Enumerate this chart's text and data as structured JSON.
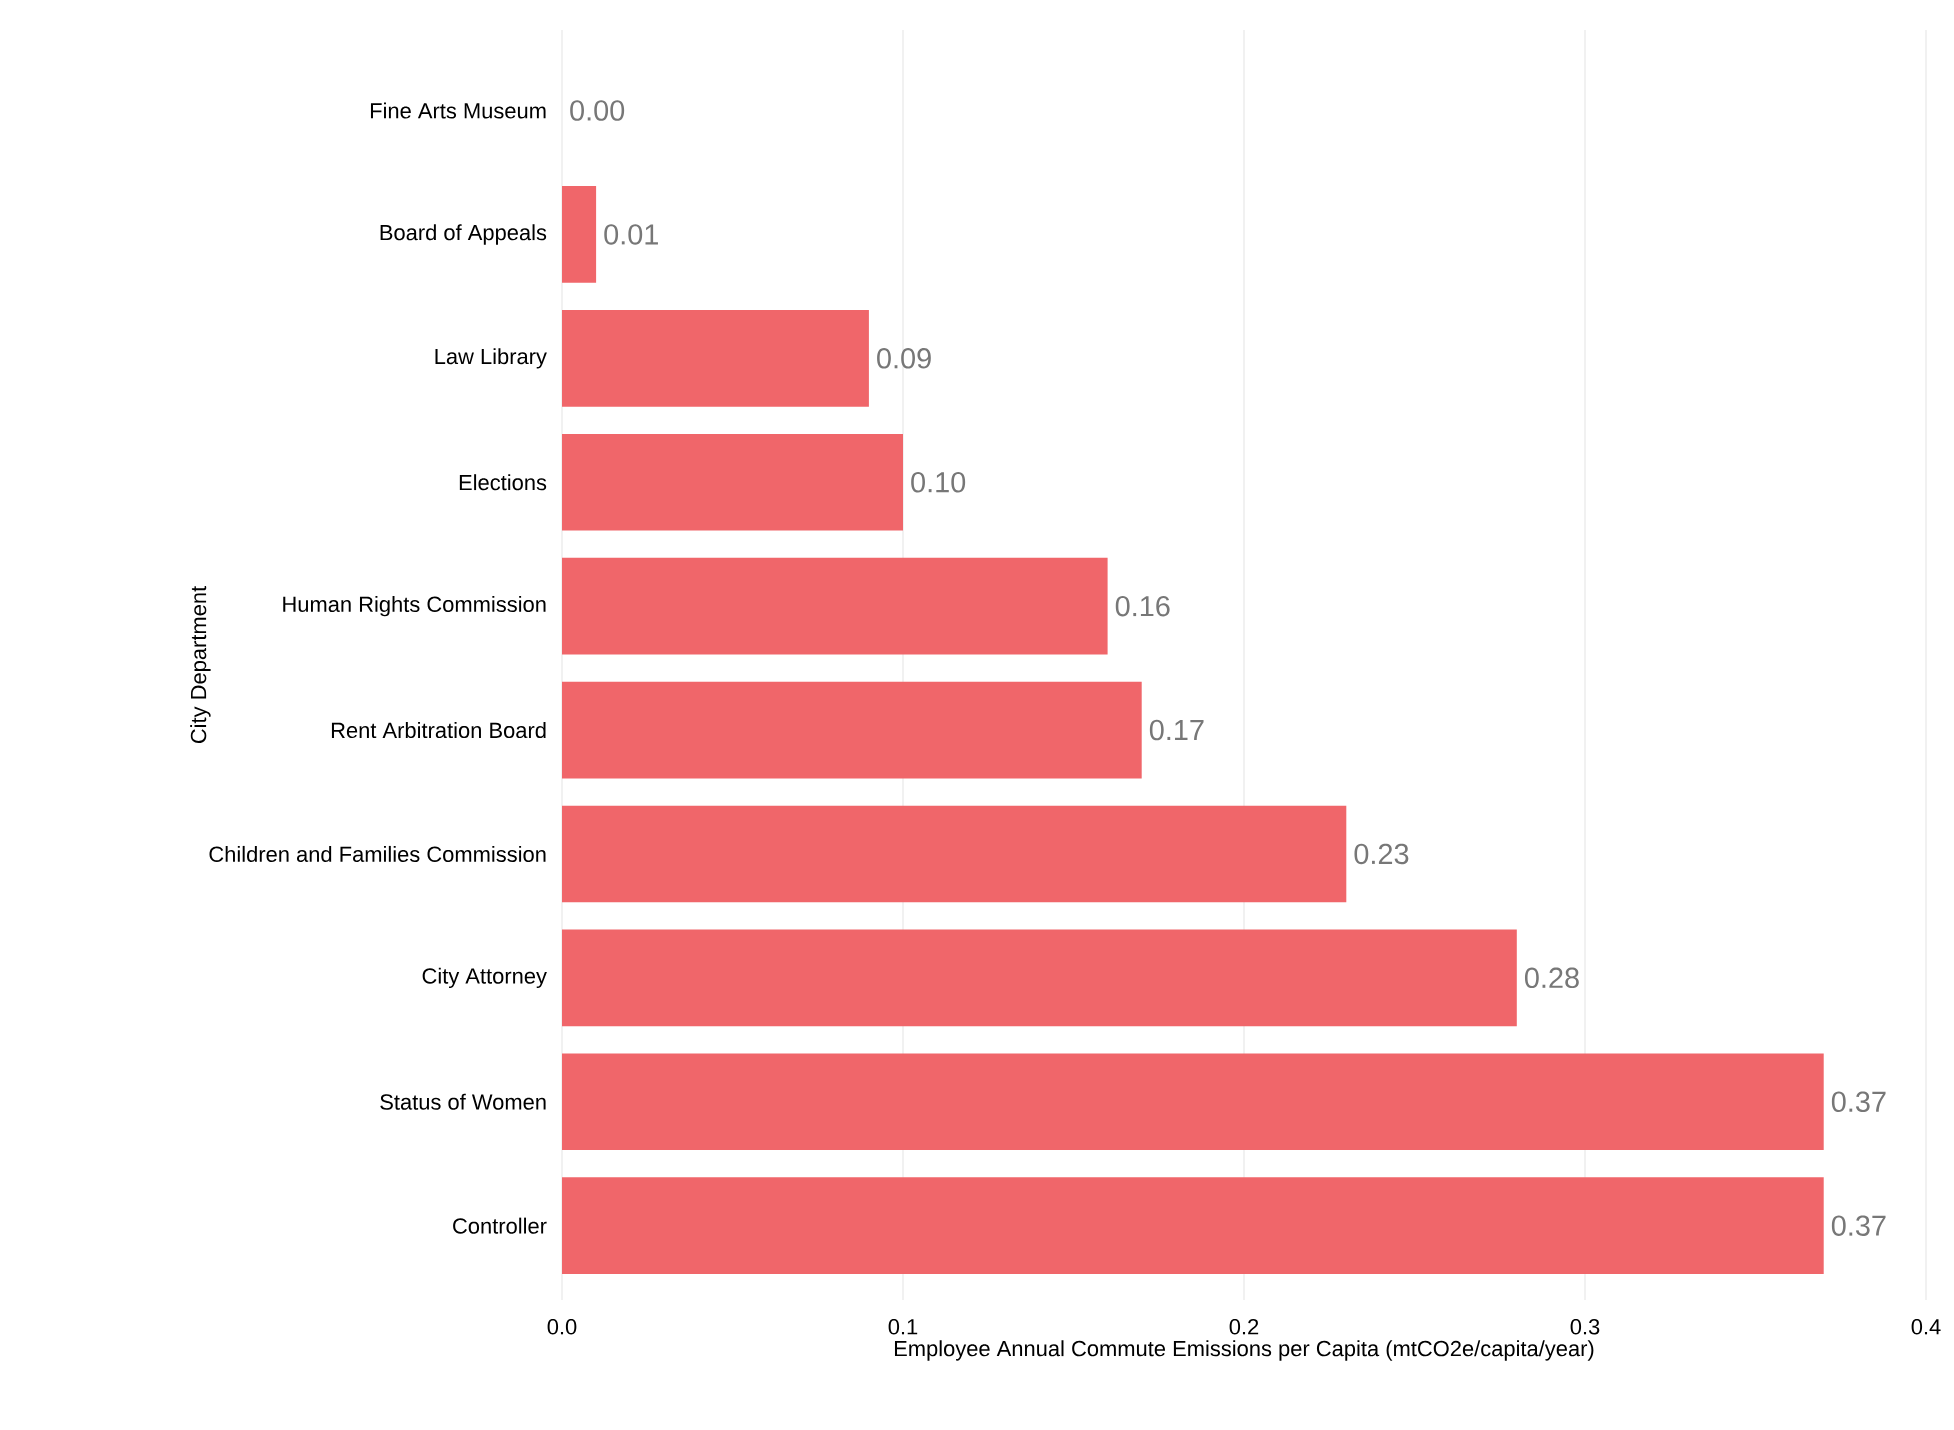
{
  "chart_data": {
    "type": "bar",
    "orientation": "horizontal",
    "xlabel": "Employee Annual Commute Emissions per Capita (mtCO2e/capita/year)",
    "ylabel": "City Department",
    "categories": [
      "Fine Arts Museum",
      "Board of Appeals",
      "Law Library",
      "Elections",
      "Human Rights Commission",
      "Rent Arbitration Board",
      "Children and Families Commission",
      "City Attorney",
      "Status of Women",
      "Controller"
    ],
    "values": [
      0.0,
      0.01,
      0.09,
      0.1,
      0.16,
      0.17,
      0.23,
      0.28,
      0.37,
      0.37
    ],
    "value_labels": [
      "0.00",
      "0.01",
      "0.09",
      "0.10",
      "0.16",
      "0.17",
      "0.23",
      "0.28",
      "0.37",
      "0.37"
    ],
    "color": "#f0666a",
    "xlim": [
      0,
      0.4
    ],
    "xticks": [
      {
        "value": 0,
        "label": "0.0"
      },
      0.1,
      0.2,
      0.3,
      0.4
    ],
    "grid": "x"
  }
}
